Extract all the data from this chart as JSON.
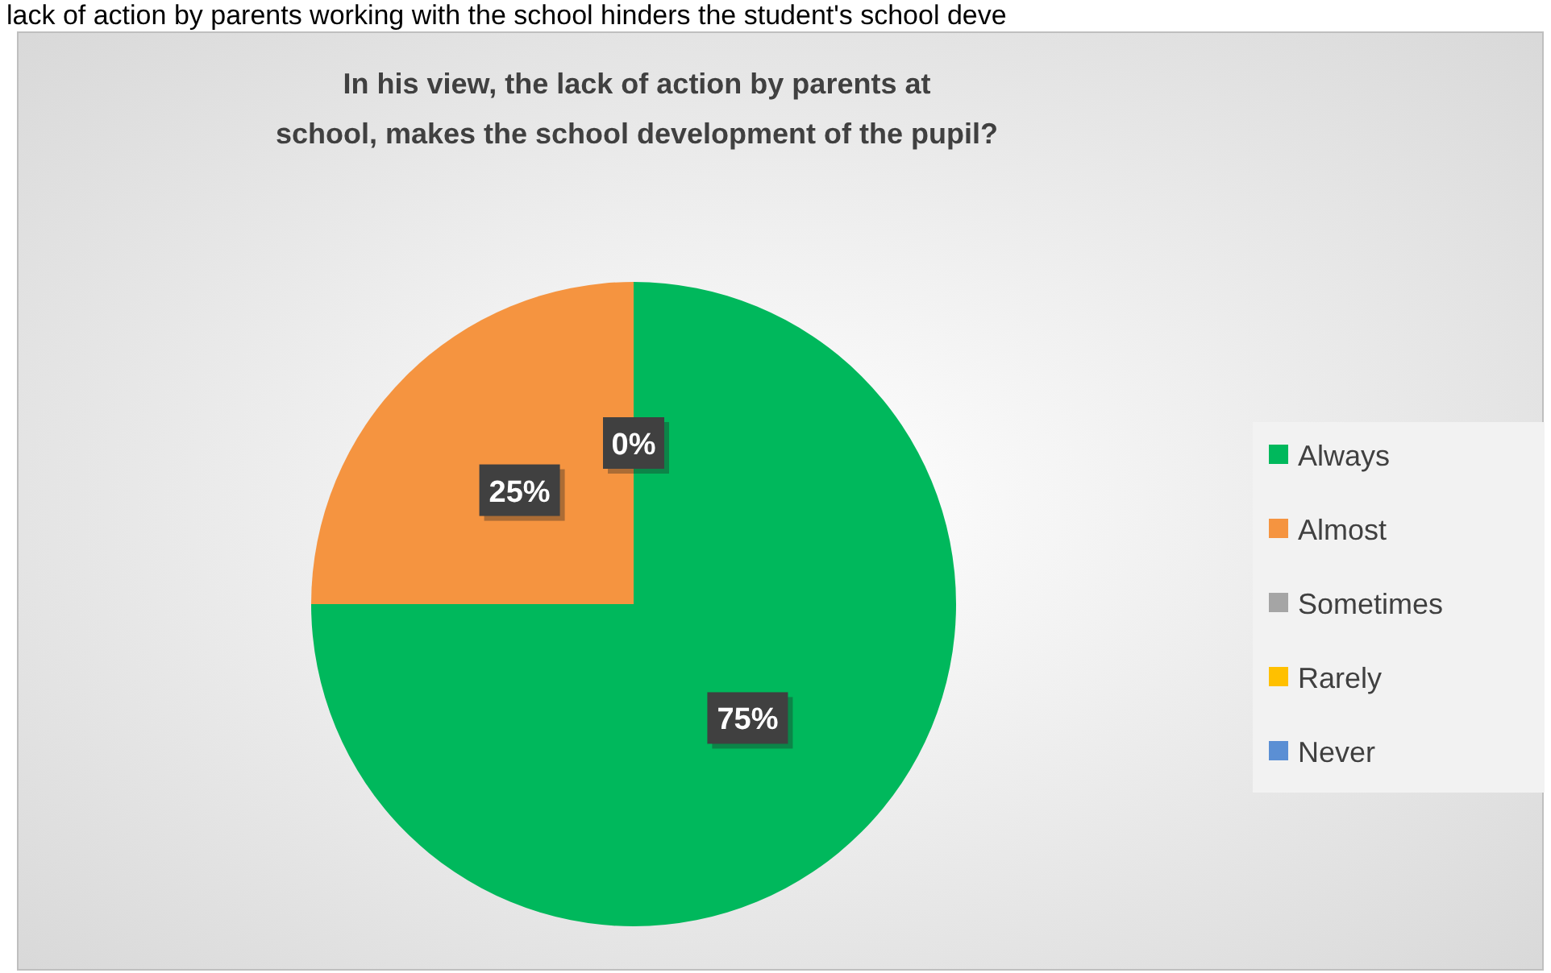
{
  "chart_data": {
    "type": "pie",
    "title": "In his view, the lack of action by parents at school, makes the school development of the pupil?",
    "subtitle": "lack of action by parents working with the school hinders the student's school deve",
    "categories": [
      "Always",
      "Almost",
      "Sometimes",
      "Rarely",
      "Never"
    ],
    "values": [
      75,
      25,
      0,
      0,
      0
    ],
    "colors": [
      "#00b85c",
      "#f59440",
      "#a5a5a5",
      "#ffc000",
      "#5b8fd4"
    ],
    "value_labels": [
      "75%",
      "25%",
      "0%",
      null,
      null
    ],
    "legend": "right"
  }
}
